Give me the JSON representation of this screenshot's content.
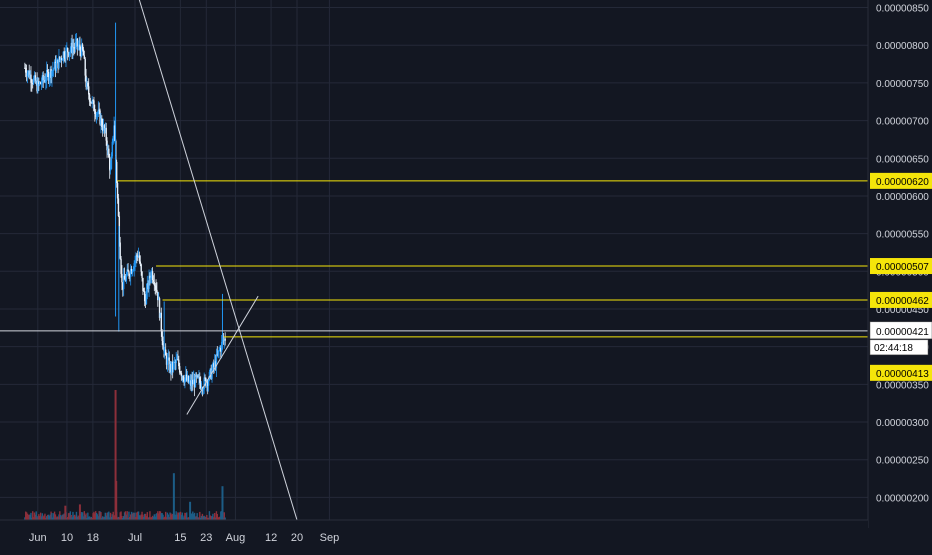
{
  "colors": {
    "background": "#131722",
    "grid": "#242938",
    "axis_text": "#d1d4dc",
    "candle_up": "#2196f3",
    "candle_down": "#e8f1fb",
    "volume_up": "#1c5d86",
    "volume_down": "#8c2f3a",
    "level": "#f5e50a",
    "trendline": "#cfd3dc",
    "price_label_bg": "#ffffff"
  },
  "chart_data": {
    "type": "candlestick",
    "x_axis": {
      "tick_labels": [
        "Jun",
        "10",
        "18",
        "Jul",
        "15",
        "23",
        "Aug",
        "12",
        "20",
        "Sep"
      ],
      "tick_days": [
        1,
        10,
        18,
        31,
        45,
        53,
        62,
        73,
        81,
        91
      ]
    },
    "y_axis": {
      "tick_labels": [
        "0.00000850",
        "0.00000800",
        "0.00000750",
        "0.00000700",
        "0.00000650",
        "0.00000600",
        "0.00000550",
        "0.00000500",
        "0.00000450",
        "0.00000400",
        "0.00000350",
        "0.00000300",
        "0.00000250",
        "0.00000200"
      ],
      "ylim": [
        1.7e-06,
        8.6e-06
      ]
    },
    "price_series": {
      "x_day": [
        -3,
        1,
        5,
        7,
        9,
        11,
        13,
        15,
        16,
        18,
        20,
        22,
        23.5,
        24.5,
        26,
        27,
        28,
        30,
        32,
        34,
        36,
        37,
        38,
        40,
        42,
        44,
        46,
        48,
        50,
        52,
        54,
        56,
        57,
        58,
        59
      ],
      "close": [
        7.7e-06,
        7.45e-06,
        7.65e-06,
        7.75e-06,
        7.9e-06,
        7.95e-06,
        8e-06,
        7.9e-06,
        7.45e-06,
        7.2e-06,
        7.05e-06,
        6.8e-06,
        6.3e-06,
        7e-06,
        5.6e-06,
        4.8e-06,
        4.9e-06,
        5.05e-06,
        5.25e-06,
        4.6e-06,
        5e-06,
        4.9e-06,
        4.7e-06,
        3.9e-06,
        3.7e-06,
        3.8e-06,
        3.6e-06,
        3.5e-06,
        3.55e-06,
        3.5e-06,
        3.6e-06,
        3.8e-06,
        3.95e-06,
        4.05e-06,
        4.13e-06
      ]
    },
    "volume_spikes": [
      {
        "day": 25,
        "volume": 100,
        "direction": "down"
      },
      {
        "day": 25.2,
        "volume": 30,
        "direction": "down"
      },
      {
        "day": 43,
        "volume": 36,
        "direction": "up"
      },
      {
        "day": 58,
        "volume": 26,
        "direction": "up"
      },
      {
        "day": 48,
        "volume": 14,
        "direction": "up"
      },
      {
        "day": 9.5,
        "volume": 11,
        "direction": "down"
      },
      {
        "day": 14,
        "volume": 12,
        "direction": "down"
      }
    ],
    "horizontal_levels": [
      {
        "label": "0.00000620",
        "value": 6.2e-06,
        "start_day": 25.5
      },
      {
        "label": "0.00000507",
        "value": 5.07e-06,
        "start_day": 37.5
      },
      {
        "label": "0.00000462",
        "value": 4.62e-06,
        "start_day": 39.5
      }
    ],
    "current_price": {
      "label": "0.00000421",
      "value": 4.21e-06,
      "countdown": "02:44:18"
    },
    "last_price": {
      "label": "0.00000413",
      "value": 4.13e-06
    },
    "trendlines": [
      {
        "from": {
          "day": 32,
          "value": 8.65e-06
        },
        "to": {
          "day": 81,
          "value": 1.7e-06
        }
      },
      {
        "from": {
          "day": 47,
          "value": 3.1e-06
        },
        "to": {
          "day": 69,
          "value": 4.67e-06
        }
      }
    ]
  }
}
